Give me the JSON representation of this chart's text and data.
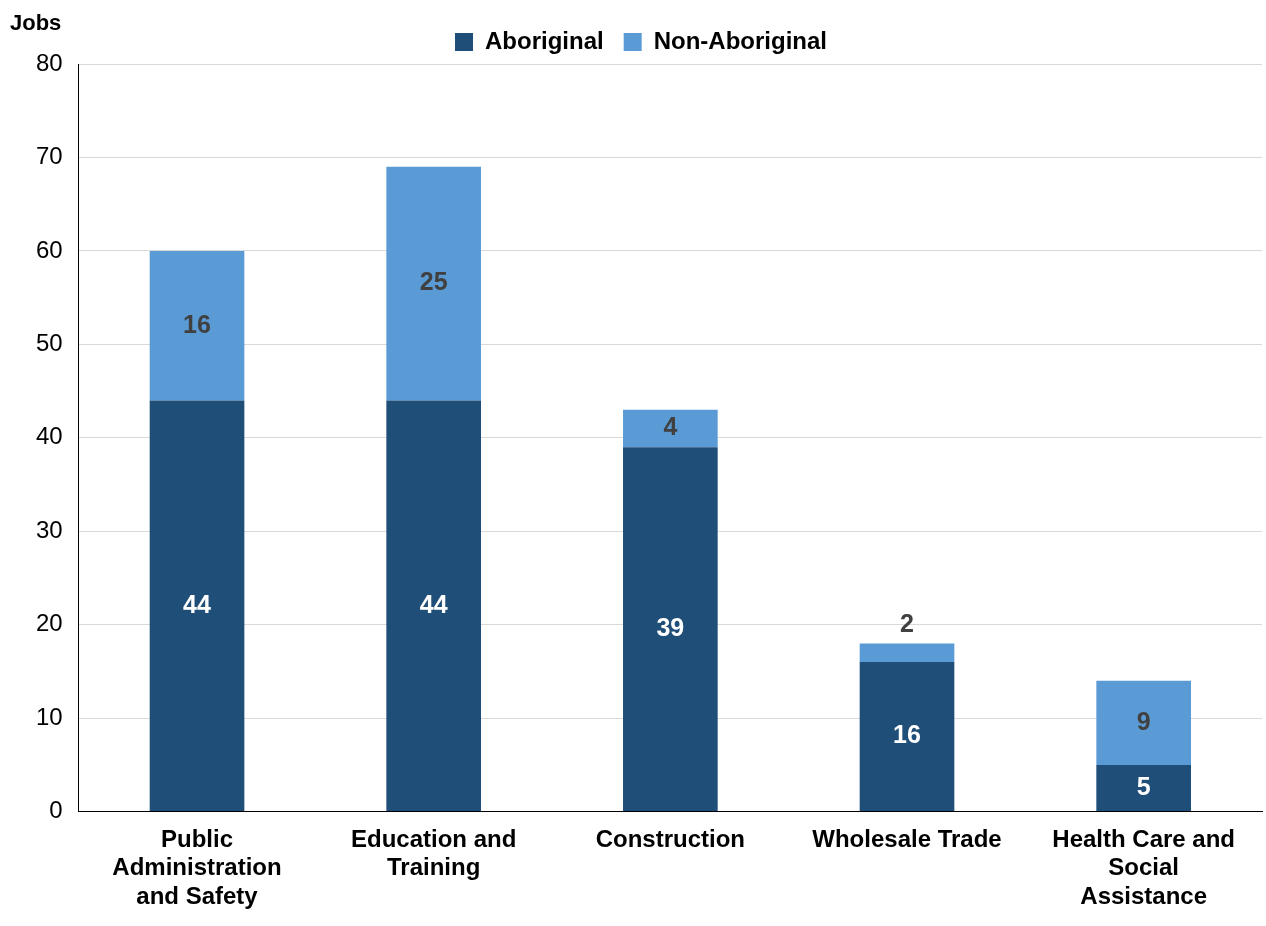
{
  "chart_data": {
    "type": "bar",
    "stacked": true,
    "ylabel": "Jobs",
    "categories": [
      "Public Administration and Safety",
      "Education and Training",
      "Construction",
      "Wholesale Trade",
      "Health Care and Social Assistance"
    ],
    "series": [
      {
        "name": "Aboriginal",
        "color": "#1f4e79",
        "values": [
          44,
          44,
          39,
          16,
          5
        ]
      },
      {
        "name": "Non-Aboriginal",
        "color": "#5b9bd5",
        "values": [
          16,
          25,
          4,
          2,
          9
        ]
      }
    ],
    "ylim": [
      0,
      80
    ],
    "yticks": [
      0,
      10,
      20,
      30,
      40,
      50,
      60,
      70,
      80
    ],
    "grid": "y",
    "legend": "top",
    "data_labels": true
  }
}
